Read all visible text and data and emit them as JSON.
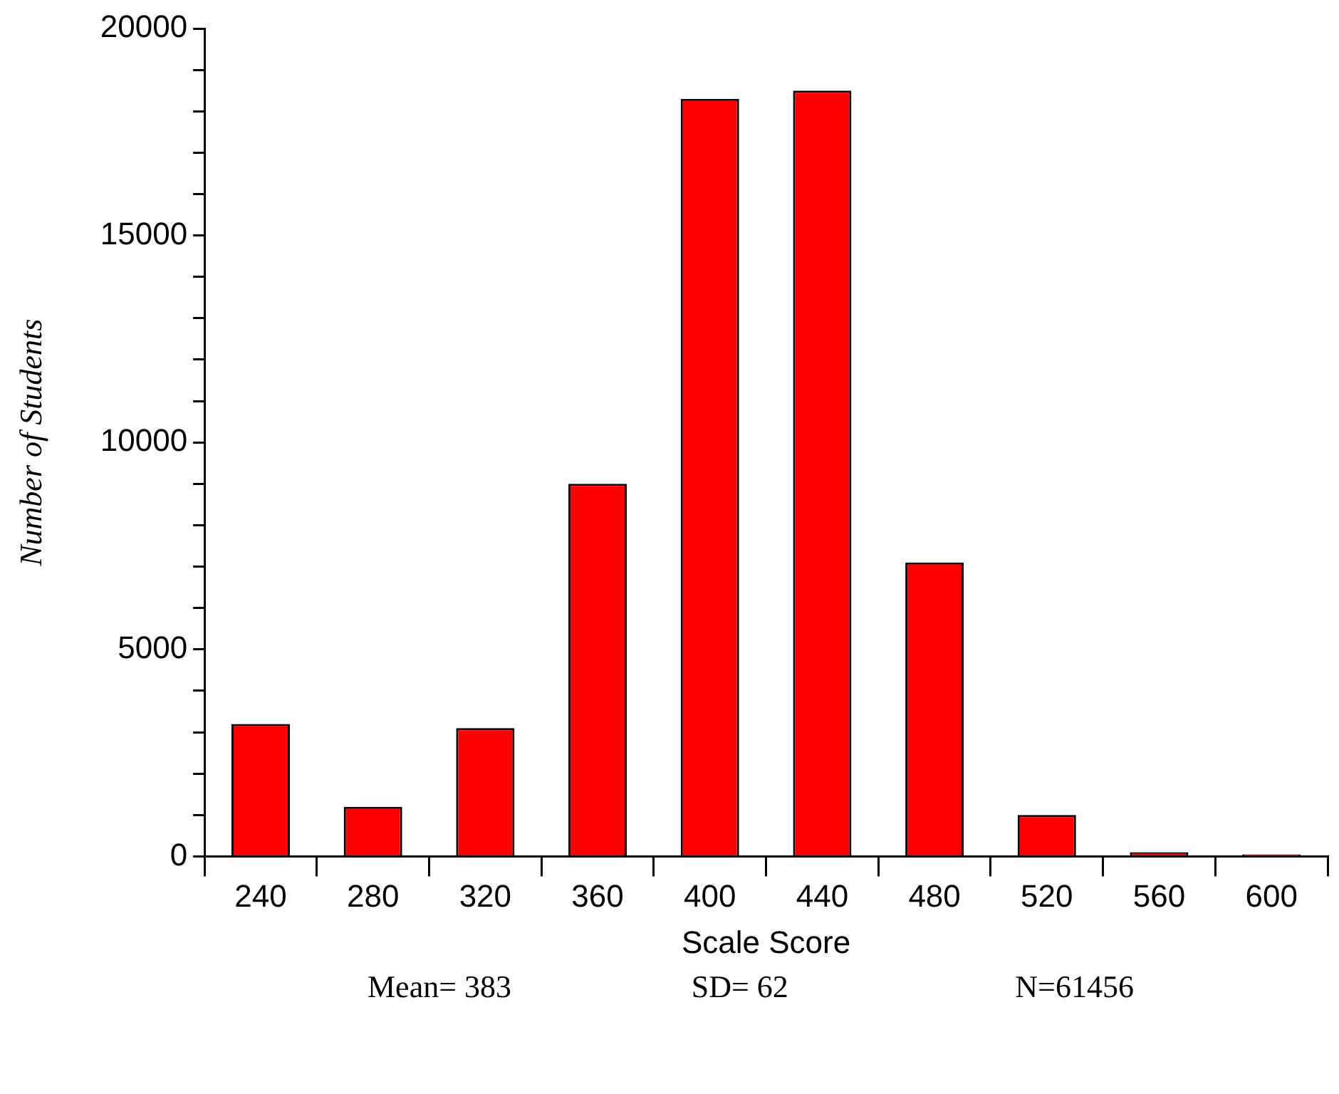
{
  "chart_data": {
    "type": "bar",
    "xlabel": "Scale Score",
    "ylabel": "Number of Students",
    "categories": [
      "240",
      "280",
      "320",
      "360",
      "400",
      "440",
      "480",
      "520",
      "560",
      "600"
    ],
    "values": [
      3200,
      1200,
      3100,
      9000,
      18300,
      18500,
      7100,
      1000,
      100,
      50
    ],
    "color": "#ff0000",
    "ylim": [
      0,
      20000
    ],
    "yticks": [
      0,
      {
        "value": 1000,
        "label": null
      },
      {
        "value": 2000,
        "label": null
      },
      {
        "value": 3000,
        "label": null
      },
      {
        "value": 4000,
        "label": null
      },
      5000,
      {
        "value": 6000,
        "label": null
      },
      {
        "value": 7000,
        "label": null
      },
      {
        "value": 8000,
        "label": null
      },
      {
        "value": 9000,
        "label": null
      },
      10000,
      {
        "value": 11000,
        "label": null
      },
      {
        "value": 12000,
        "label": null
      },
      {
        "value": 13000,
        "label": null
      },
      {
        "value": 14000,
        "label": null
      },
      15000,
      {
        "value": 16000,
        "label": null
      },
      {
        "value": 17000,
        "label": null
      },
      {
        "value": 18000,
        "label": null
      },
      {
        "value": 19000,
        "label": null
      },
      20000
    ],
    "grid": false,
    "legend": false,
    "annotations": [
      "Mean= 383",
      "SD= 62",
      "N=61456"
    ]
  }
}
